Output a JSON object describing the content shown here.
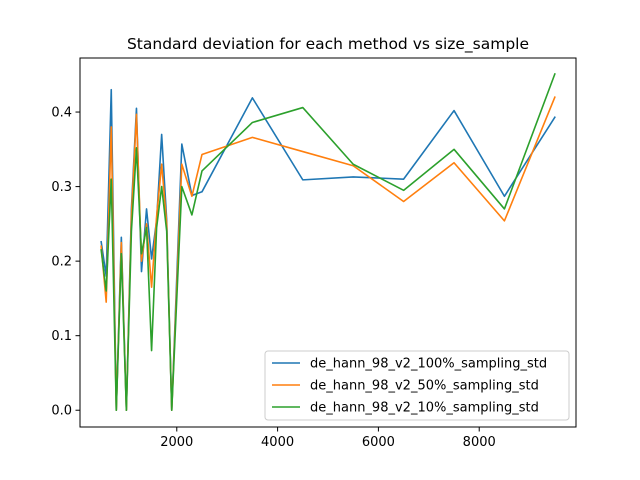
{
  "chart_data": {
    "type": "line",
    "title": "Standard deviation for each method vs size_sample",
    "xlabel": "",
    "ylabel": "",
    "xlim": [
      80,
      9920
    ],
    "ylim": [
      -0.0225,
      0.4725
    ],
    "xticks": [
      2000,
      4000,
      6000,
      8000
    ],
    "yticks": [
      0.0,
      0.1,
      0.2,
      0.3,
      0.4
    ],
    "xtick_labels": [
      "2000",
      "4000",
      "6000",
      "8000"
    ],
    "ytick_labels": [
      "0.0",
      "0.1",
      "0.2",
      "0.3",
      "0.4"
    ],
    "grid": false,
    "legend_position": "lower-right",
    "x": [
      500,
      600,
      700,
      800,
      900,
      1000,
      1100,
      1200,
      1300,
      1400,
      1500,
      1600,
      1700,
      1800,
      1900,
      2100,
      2300,
      2500,
      3500,
      4500,
      5500,
      6500,
      7500,
      8500,
      9500
    ],
    "series": [
      {
        "name": "de_hann_98_v2_100%_sampling_std",
        "color": "#1f77b4",
        "values": [
          0.226,
          0.18,
          0.43,
          0.0,
          0.232,
          0.0,
          0.27,
          0.405,
          0.186,
          0.27,
          0.203,
          0.255,
          0.37,
          0.255,
          0.0,
          0.357,
          0.288,
          0.293,
          0.419,
          0.309,
          0.313,
          0.31,
          0.402,
          0.287,
          0.393
        ]
      },
      {
        "name": "de_hann_98_v2_50%_sampling_std",
        "color": "#ff7f0e",
        "values": [
          0.22,
          0.145,
          0.38,
          0.0,
          0.225,
          0.0,
          0.26,
          0.397,
          0.2,
          0.25,
          0.165,
          0.26,
          0.33,
          0.25,
          0.0,
          0.33,
          0.287,
          0.343,
          0.366,
          0.347,
          0.328,
          0.28,
          0.332,
          0.254,
          0.42
        ]
      },
      {
        "name": "de_hann_98_v2_10%_sampling_std",
        "color": "#2ca02c",
        "values": [
          0.215,
          0.16,
          0.31,
          0.0,
          0.21,
          0.0,
          0.24,
          0.352,
          0.21,
          0.245,
          0.08,
          0.245,
          0.3,
          0.24,
          0.0,
          0.3,
          0.262,
          0.321,
          0.386,
          0.406,
          0.33,
          0.295,
          0.35,
          0.27,
          0.451
        ]
      }
    ]
  }
}
